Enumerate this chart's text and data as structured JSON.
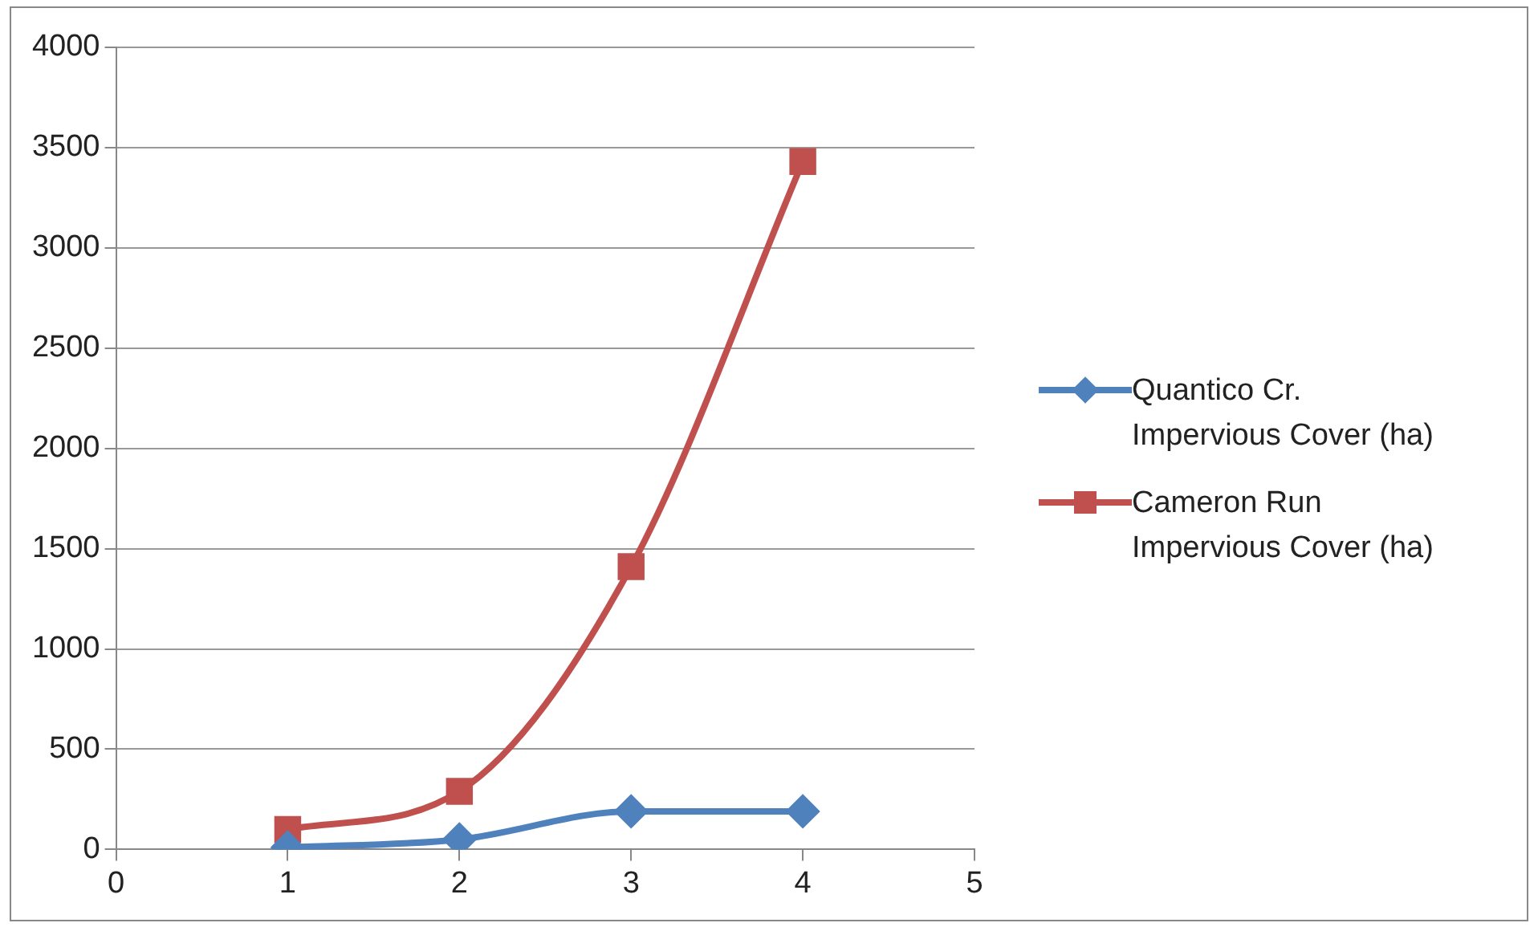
{
  "chart_data": {
    "type": "line",
    "x": [
      1,
      2,
      3,
      4
    ],
    "series": [
      {
        "name": "Quantico Cr. Impervious Cover (ha)",
        "color": "#4f81bd",
        "marker": "diamond",
        "values": [
          10,
          50,
          190,
          190
        ]
      },
      {
        "name": "Cameron Run Impervious Cover (ha)",
        "color": "#c0504d",
        "marker": "square",
        "values": [
          100,
          290,
          1410,
          3430
        ]
      }
    ],
    "xlim": [
      0,
      5
    ],
    "xticks": [
      0,
      1,
      2,
      3,
      4,
      5
    ],
    "ylim": [
      0,
      4000
    ],
    "yticks": [
      0,
      500,
      1000,
      1500,
      2000,
      2500,
      3000,
      3500,
      4000
    ],
    "grid": "y",
    "legend": "right"
  }
}
